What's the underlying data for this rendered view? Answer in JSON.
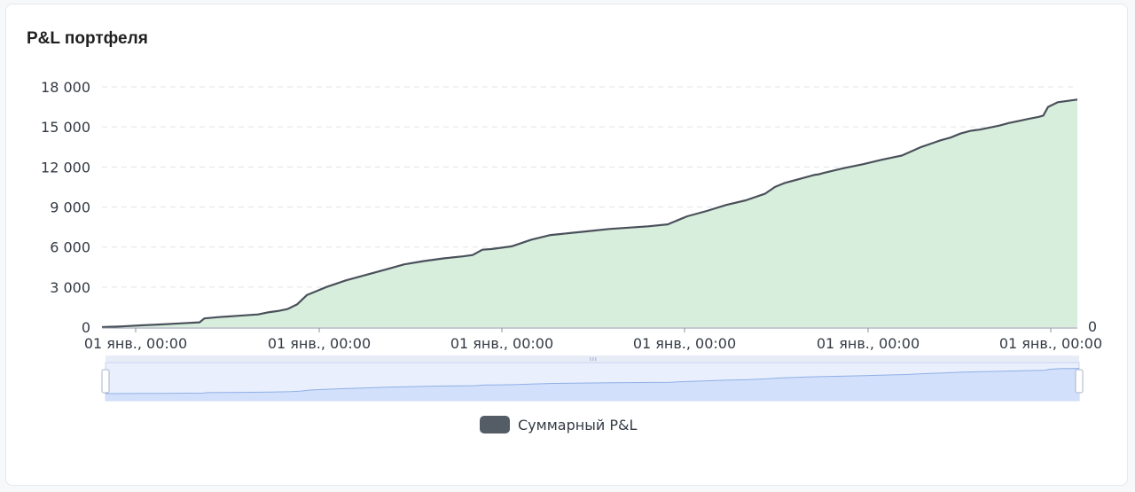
{
  "panel": {
    "title": "P&L портфеля"
  },
  "legend": {
    "label": "Суммарный P&L",
    "swatch_icon": "rounded-rect-legend-icon"
  },
  "colors": {
    "line": "#4a505a",
    "area_fill": "#d7eedd",
    "grid": "#dfe3e8",
    "zoom_fill": "#d3e0fb",
    "zoom_border": "#c9d6f0",
    "zoom_line": "#8fb0e6",
    "legend_swatch": "#545c66"
  },
  "chart_data": {
    "type": "area",
    "y_ticks": [
      "0",
      "3 000",
      "6 000",
      "9 000",
      "12 000",
      "15 000",
      "18 000"
    ],
    "y_tick_values": [
      0,
      3000,
      6000,
      9000,
      12000,
      15000,
      18000
    ],
    "ylim": [
      0,
      18000
    ],
    "secondary_y_label": "0",
    "x_ticks": [
      "01 янв., 00:00",
      "01 янв., 00:00",
      "01 янв., 00:00",
      "01 янв., 00:00",
      "01 янв., 00:00",
      "01 янв., 00:00"
    ],
    "grid": true,
    "legend_position": "bottom",
    "series": [
      {
        "name": "Суммарный P&L",
        "x": [
          0,
          2,
          4,
          6,
          8,
          10,
          10.5,
          12,
          14,
          16,
          17,
          18,
          19,
          20,
          21,
          22,
          23,
          25,
          27,
          29,
          31,
          33,
          35,
          37,
          38,
          39,
          40,
          42,
          44,
          46,
          48,
          50,
          52,
          54,
          56,
          58,
          60,
          62,
          64,
          66,
          68,
          69,
          70,
          71,
          72,
          73,
          73.5,
          74,
          76,
          78,
          80,
          82,
          84,
          85,
          86,
          87,
          88,
          89,
          89.5,
          90,
          92,
          93,
          94,
          95,
          96,
          96.5,
          97,
          98,
          100
        ],
        "values": [
          0,
          50,
          130,
          200,
          280,
          360,
          650,
          750,
          850,
          950,
          1100,
          1200,
          1350,
          1700,
          2400,
          2700,
          3000,
          3500,
          3900,
          4300,
          4700,
          4950,
          5150,
          5300,
          5400,
          5800,
          5850,
          6050,
          6550,
          6900,
          7050,
          7200,
          7350,
          7450,
          7550,
          7700,
          8300,
          8700,
          9150,
          9500,
          10000,
          10500,
          10800,
          11000,
          11200,
          11400,
          11450,
          11550,
          11900,
          12200,
          12550,
          12850,
          13500,
          13750,
          14000,
          14200,
          14500,
          14700,
          14750,
          14800,
          15100,
          15300,
          15450,
          15600,
          15750,
          15850,
          16500,
          16850,
          17050
        ]
      }
    ]
  }
}
